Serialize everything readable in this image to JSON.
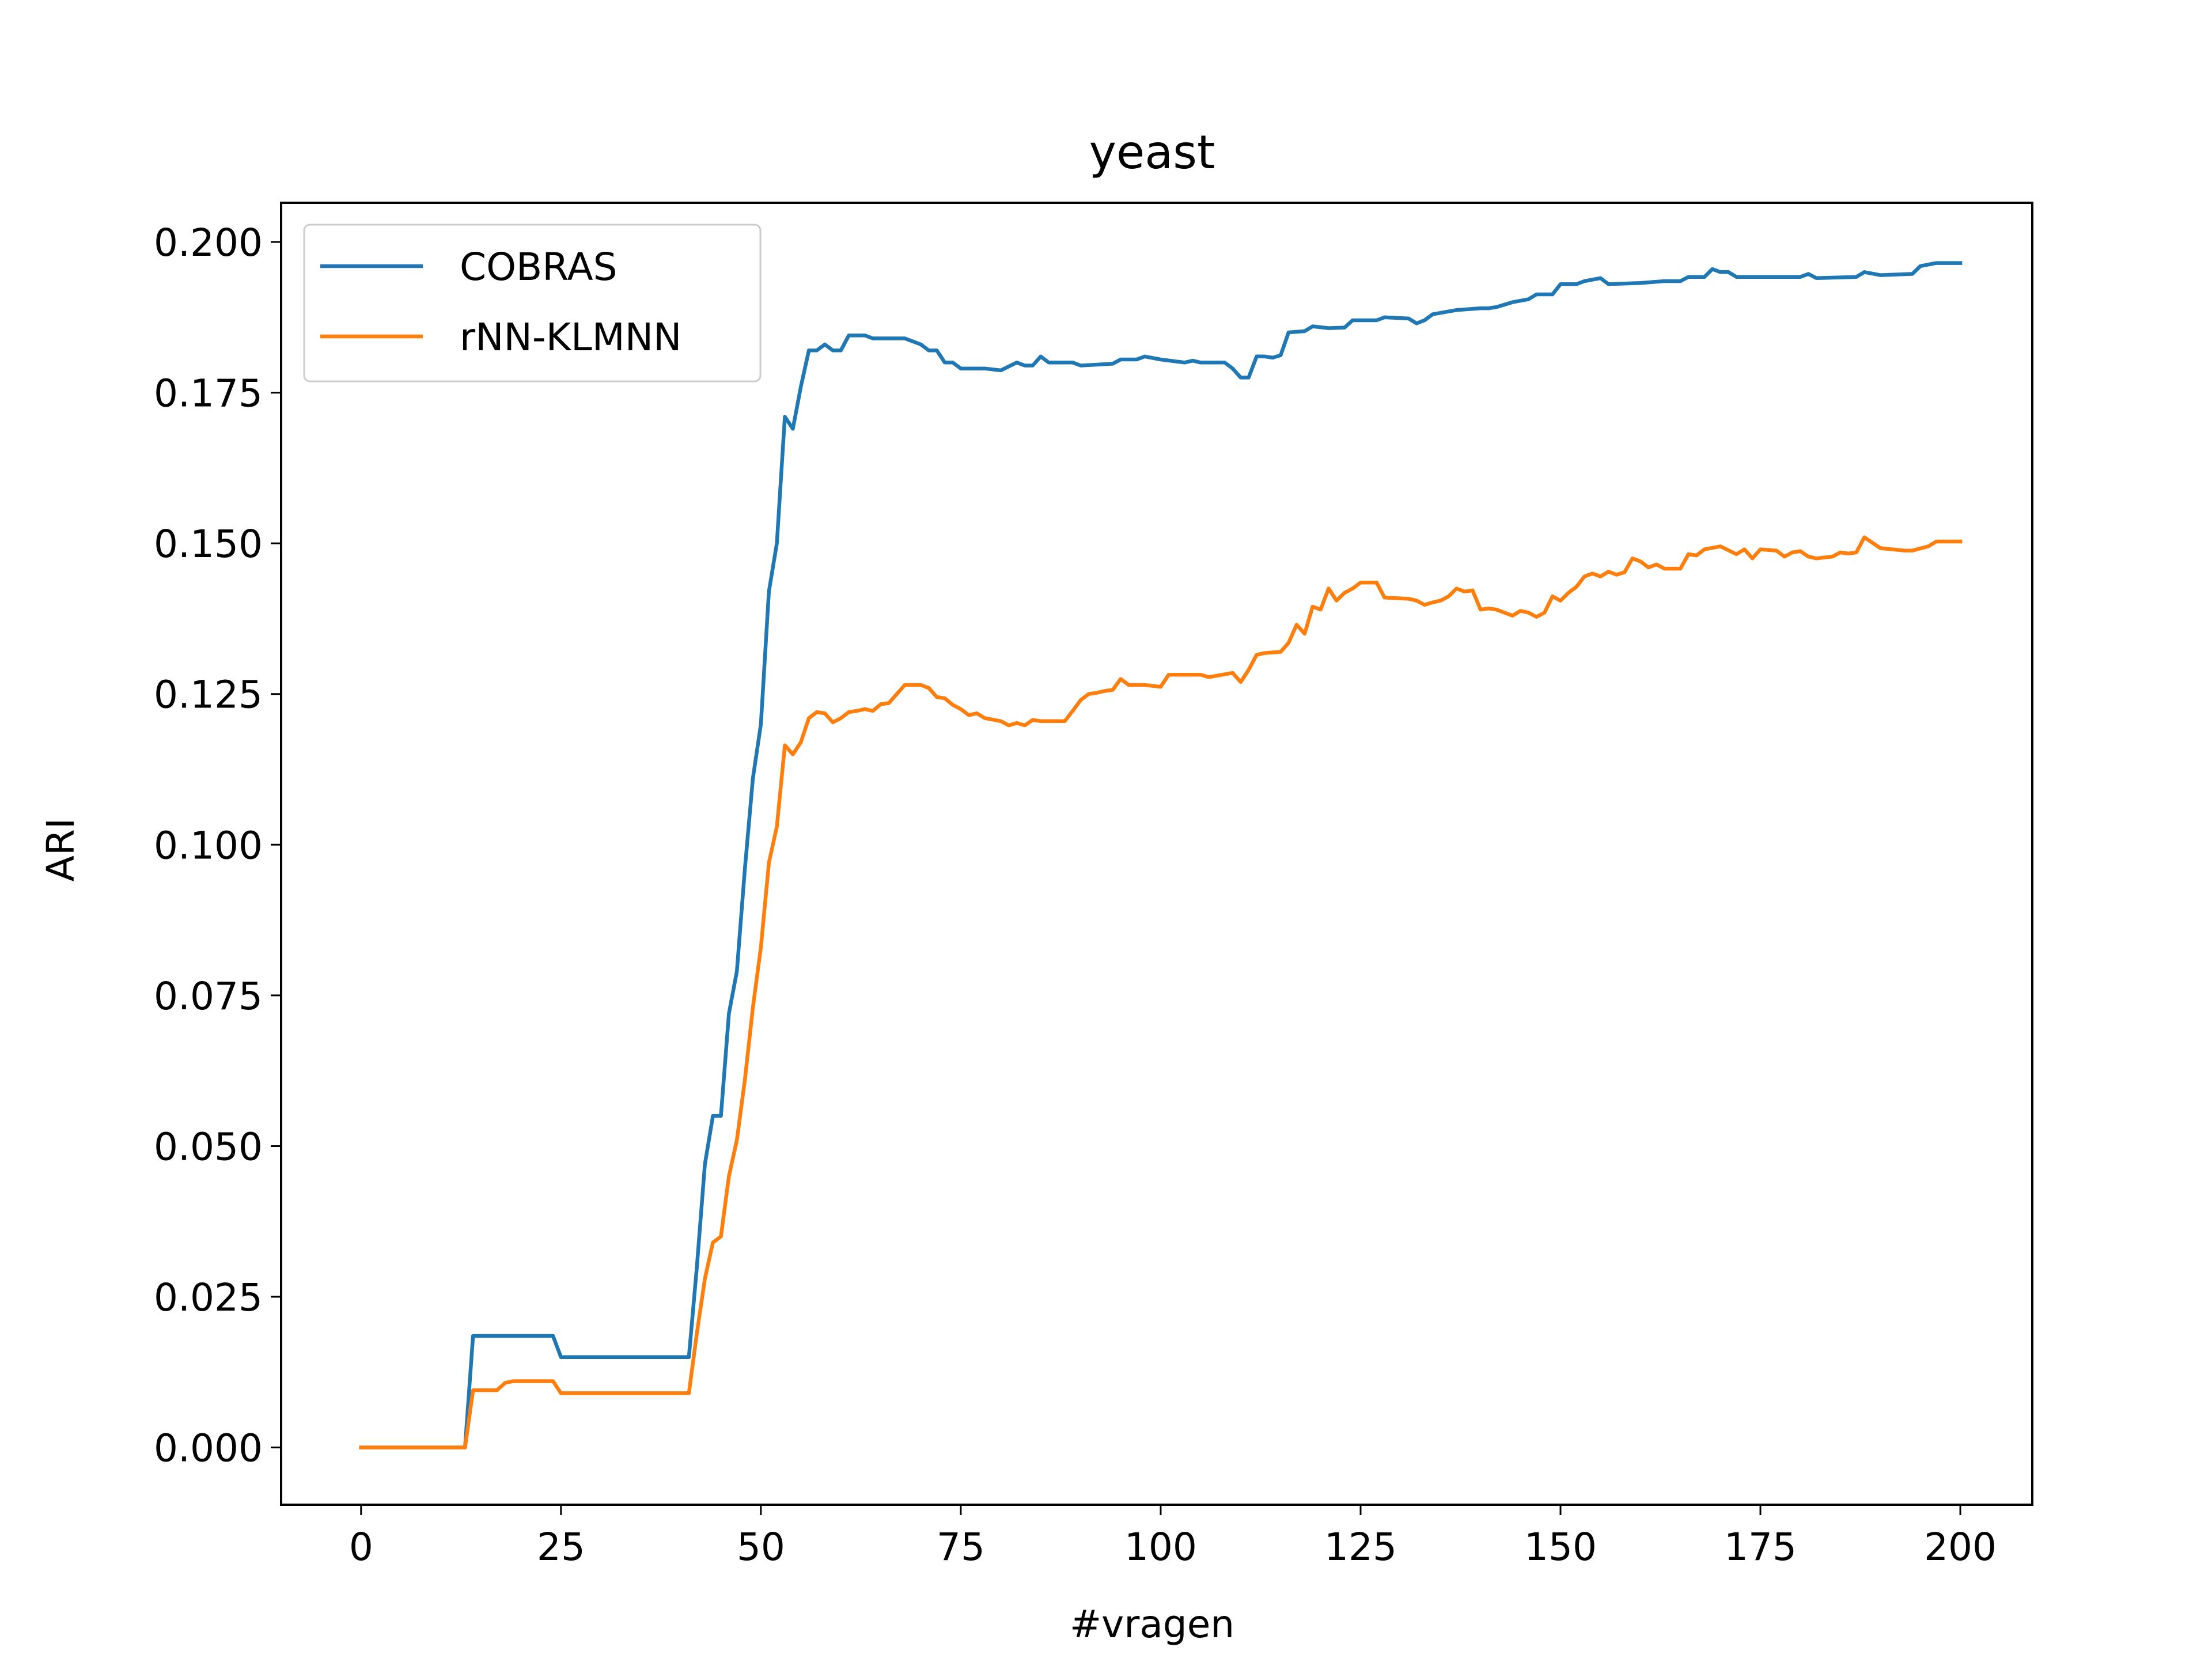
{
  "chart_data": {
    "type": "line",
    "title": "yeast",
    "xlabel": "#vragen",
    "ylabel": "ARI",
    "xlim": [
      -10,
      209
    ],
    "ylim": [
      -0.0095,
      0.2065
    ],
    "xticks": [
      0,
      25,
      50,
      75,
      100,
      125,
      150,
      175,
      200
    ],
    "xtick_labels": [
      "0",
      "25",
      "50",
      "75",
      "100",
      "125",
      "150",
      "175",
      "200"
    ],
    "yticks": [
      0.0,
      0.025,
      0.05,
      0.075,
      0.1,
      0.125,
      0.15,
      0.175,
      0.2
    ],
    "ytick_labels": [
      "0.000",
      "0.025",
      "0.050",
      "0.075",
      "0.100",
      "0.125",
      "0.150",
      "0.175",
      "0.200"
    ],
    "grid": false,
    "legend_position": "top-left",
    "series": [
      {
        "name": "COBRAS",
        "color": "#1f77b4",
        "points": [
          [
            0,
            0
          ],
          [
            13,
            0
          ],
          [
            14,
            0.0185
          ],
          [
            24,
            0.0185
          ],
          [
            25,
            0.015
          ],
          [
            41,
            0.015
          ],
          [
            42,
            0.03
          ],
          [
            43,
            0.047
          ],
          [
            44,
            0.055
          ],
          [
            45,
            0.055
          ],
          [
            46,
            0.072
          ],
          [
            47,
            0.079
          ],
          [
            48,
            0.096
          ],
          [
            49,
            0.111
          ],
          [
            50,
            0.12
          ],
          [
            51,
            0.142
          ],
          [
            52,
            0.15
          ],
          [
            53,
            0.171
          ],
          [
            54,
            0.169
          ],
          [
            55,
            0.176
          ],
          [
            56,
            0.182
          ],
          [
            57,
            0.182
          ],
          [
            58,
            0.183
          ],
          [
            59,
            0.182
          ],
          [
            60,
            0.182
          ],
          [
            61,
            0.1845
          ],
          [
            62,
            0.1845
          ],
          [
            63,
            0.1845
          ],
          [
            64,
            0.184
          ],
          [
            67,
            0.184
          ],
          [
            68,
            0.184
          ],
          [
            69,
            0.1835
          ],
          [
            70,
            0.183
          ],
          [
            71,
            0.182
          ],
          [
            72,
            0.182
          ],
          [
            73,
            0.18
          ],
          [
            74,
            0.18
          ],
          [
            75,
            0.179
          ],
          [
            78,
            0.179
          ],
          [
            80,
            0.1787
          ],
          [
            82,
            0.18
          ],
          [
            83,
            0.1795
          ],
          [
            84,
            0.1795
          ],
          [
            85,
            0.181
          ],
          [
            86,
            0.18
          ],
          [
            89,
            0.18
          ],
          [
            90,
            0.1795
          ],
          [
            94,
            0.1798
          ],
          [
            95,
            0.1805
          ],
          [
            97,
            0.1805
          ],
          [
            98,
            0.181
          ],
          [
            100,
            0.1805
          ],
          [
            103,
            0.18
          ],
          [
            104,
            0.1803
          ],
          [
            105,
            0.18
          ],
          [
            108,
            0.18
          ],
          [
            109,
            0.179
          ],
          [
            110,
            0.1775
          ],
          [
            111,
            0.1775
          ],
          [
            112,
            0.181
          ],
          [
            113,
            0.181
          ],
          [
            114,
            0.1808
          ],
          [
            115,
            0.1812
          ],
          [
            116,
            0.185
          ],
          [
            118,
            0.1852
          ],
          [
            119,
            0.186
          ],
          [
            121,
            0.1857
          ],
          [
            123,
            0.1858
          ],
          [
            124,
            0.187
          ],
          [
            127,
            0.187
          ],
          [
            128,
            0.1875
          ],
          [
            131,
            0.1873
          ],
          [
            132,
            0.1865
          ],
          [
            133,
            0.187
          ],
          [
            134,
            0.188
          ],
          [
            137,
            0.1887
          ],
          [
            140,
            0.189
          ],
          [
            141,
            0.189
          ],
          [
            142,
            0.1892
          ],
          [
            144,
            0.19
          ],
          [
            146,
            0.1905
          ],
          [
            147,
            0.1913
          ],
          [
            149,
            0.1913
          ],
          [
            150,
            0.193
          ],
          [
            152,
            0.193
          ],
          [
            153,
            0.1935
          ],
          [
            155,
            0.194
          ],
          [
            156,
            0.193
          ],
          [
            160,
            0.1932
          ],
          [
            163,
            0.1935
          ],
          [
            165,
            0.1935
          ],
          [
            166,
            0.1942
          ],
          [
            168,
            0.1942
          ],
          [
            169,
            0.1955
          ],
          [
            170,
            0.195
          ],
          [
            171,
            0.195
          ],
          [
            172,
            0.1942
          ],
          [
            180,
            0.1942
          ],
          [
            181,
            0.1947
          ],
          [
            182,
            0.194
          ],
          [
            187,
            0.1942
          ],
          [
            188,
            0.195
          ],
          [
            190,
            0.1945
          ],
          [
            194,
            0.1947
          ],
          [
            195,
            0.196
          ],
          [
            197,
            0.1965
          ],
          [
            200,
            0.1965
          ]
        ]
      },
      {
        "name": "rNN-KLMNN",
        "color": "#ff7f0e",
        "points": [
          [
            0,
            0
          ],
          [
            13,
            0
          ],
          [
            14,
            0.0095
          ],
          [
            17,
            0.0095
          ],
          [
            18,
            0.0107
          ],
          [
            19,
            0.011
          ],
          [
            24,
            0.011
          ],
          [
            25,
            0.009
          ],
          [
            41,
            0.009
          ],
          [
            42,
            0.019
          ],
          [
            43,
            0.028
          ],
          [
            44,
            0.034
          ],
          [
            45,
            0.035
          ],
          [
            46,
            0.045
          ],
          [
            47,
            0.051
          ],
          [
            48,
            0.061
          ],
          [
            49,
            0.073
          ],
          [
            50,
            0.083
          ],
          [
            51,
            0.097
          ],
          [
            52,
            0.103
          ],
          [
            53,
            0.1165
          ],
          [
            54,
            0.115
          ],
          [
            55,
            0.117
          ],
          [
            56,
            0.121
          ],
          [
            57,
            0.122
          ],
          [
            58,
            0.1218
          ],
          [
            59,
            0.1203
          ],
          [
            60,
            0.121
          ],
          [
            61,
            0.122
          ],
          [
            62,
            0.1222
          ],
          [
            63,
            0.1225
          ],
          [
            64,
            0.1222
          ],
          [
            65,
            0.1233
          ],
          [
            66,
            0.1235
          ],
          [
            67,
            0.125
          ],
          [
            68,
            0.1265
          ],
          [
            70,
            0.1265
          ],
          [
            71,
            0.126
          ],
          [
            72,
            0.1245
          ],
          [
            73,
            0.1243
          ],
          [
            74,
            0.1232
          ],
          [
            75,
            0.1225
          ],
          [
            76,
            0.1215
          ],
          [
            77,
            0.1218
          ],
          [
            78,
            0.121
          ],
          [
            80,
            0.1205
          ],
          [
            81,
            0.1198
          ],
          [
            82,
            0.1202
          ],
          [
            83,
            0.1198
          ],
          [
            84,
            0.1207
          ],
          [
            85,
            0.1205
          ],
          [
            88,
            0.1205
          ],
          [
            89,
            0.1222
          ],
          [
            90,
            0.124
          ],
          [
            91,
            0.125
          ],
          [
            92,
            0.1252
          ],
          [
            93,
            0.1255
          ],
          [
            94,
            0.1257
          ],
          [
            95,
            0.1275
          ],
          [
            96,
            0.1265
          ],
          [
            98,
            0.1265
          ],
          [
            100,
            0.1262
          ],
          [
            101,
            0.1282
          ],
          [
            105,
            0.1282
          ],
          [
            106,
            0.1278
          ],
          [
            109,
            0.1285
          ],
          [
            110,
            0.127
          ],
          [
            111,
            0.129
          ],
          [
            112,
            0.1315
          ],
          [
            113,
            0.1318
          ],
          [
            115,
            0.132
          ],
          [
            116,
            0.1335
          ],
          [
            117,
            0.1365
          ],
          [
            118,
            0.135
          ],
          [
            119,
            0.1395
          ],
          [
            120,
            0.139
          ],
          [
            121,
            0.1425
          ],
          [
            122,
            0.1405
          ],
          [
            123,
            0.1418
          ],
          [
            124,
            0.1425
          ],
          [
            125,
            0.1435
          ],
          [
            127,
            0.1435
          ],
          [
            128,
            0.141
          ],
          [
            131,
            0.1408
          ],
          [
            132,
            0.1405
          ],
          [
            133,
            0.1398
          ],
          [
            134,
            0.1402
          ],
          [
            135,
            0.1405
          ],
          [
            136,
            0.1412
          ],
          [
            137,
            0.1425
          ],
          [
            138,
            0.142
          ],
          [
            139,
            0.1422
          ],
          [
            140,
            0.139
          ],
          [
            141,
            0.1392
          ],
          [
            142,
            0.139
          ],
          [
            143,
            0.1385
          ],
          [
            144,
            0.138
          ],
          [
            145,
            0.1388
          ],
          [
            146,
            0.1385
          ],
          [
            147,
            0.1378
          ],
          [
            148,
            0.1385
          ],
          [
            149,
            0.1412
          ],
          [
            150,
            0.1405
          ],
          [
            151,
            0.1418
          ],
          [
            152,
            0.1428
          ],
          [
            153,
            0.1445
          ],
          [
            154,
            0.145
          ],
          [
            155,
            0.1445
          ],
          [
            156,
            0.1453
          ],
          [
            157,
            0.1448
          ],
          [
            158,
            0.1452
          ],
          [
            159,
            0.1475
          ],
          [
            160,
            0.147
          ],
          [
            161,
            0.146
          ],
          [
            162,
            0.1465
          ],
          [
            163,
            0.1458
          ],
          [
            165,
            0.1458
          ],
          [
            166,
            0.1482
          ],
          [
            167,
            0.148
          ],
          [
            168,
            0.149
          ],
          [
            170,
            0.1495
          ],
          [
            172,
            0.1482
          ],
          [
            173,
            0.149
          ],
          [
            174,
            0.1475
          ],
          [
            175,
            0.149
          ],
          [
            177,
            0.1488
          ],
          [
            178,
            0.1478
          ],
          [
            179,
            0.1485
          ],
          [
            180,
            0.1487
          ],
          [
            181,
            0.1478
          ],
          [
            182,
            0.1475
          ],
          [
            184,
            0.1478
          ],
          [
            185,
            0.1485
          ],
          [
            186,
            0.1483
          ],
          [
            187,
            0.1485
          ],
          [
            188,
            0.151
          ],
          [
            190,
            0.1492
          ],
          [
            193,
            0.1488
          ],
          [
            194,
            0.1488
          ],
          [
            196,
            0.1495
          ],
          [
            197,
            0.1503
          ],
          [
            200,
            0.1503
          ]
        ]
      }
    ]
  }
}
